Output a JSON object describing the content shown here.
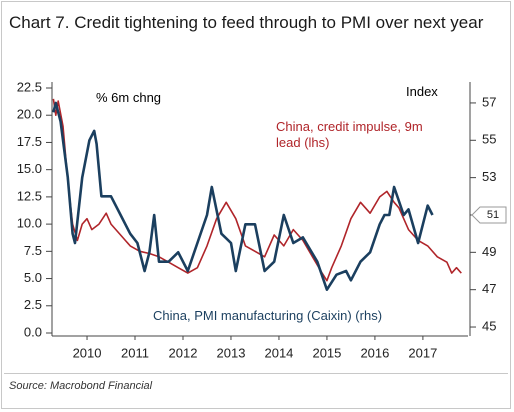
{
  "chart_data": {
    "type": "line",
    "title": "Chart 7. Credit tightening to feed through to PMI over next year",
    "ylabel": "% 6m chng",
    "y2label": "Index",
    "source": "Source: Macrobond Financial",
    "xlim": [
      2009.77,
      2018.44
    ],
    "xticks": [
      {
        "value": 2010.5,
        "label": "2010"
      },
      {
        "value": 2011.5,
        "label": "2011"
      },
      {
        "value": 2012.5,
        "label": "2012"
      },
      {
        "value": 2013.5,
        "label": "2013"
      },
      {
        "value": 2014.5,
        "label": "2014"
      },
      {
        "value": 2015.5,
        "label": "2015"
      },
      {
        "value": 2016.5,
        "label": "2016"
      },
      {
        "value": 2017.5,
        "label": "2017"
      }
    ],
    "ylim": [
      0,
      22.5
    ],
    "yticks": [
      {
        "value": 0,
        "label": "0.0"
      },
      2.5,
      {
        "value": 5,
        "label": "5.0"
      },
      7.5,
      {
        "value": 10,
        "label": "10.0"
      },
      12.5,
      {
        "value": 15,
        "label": "15.0"
      },
      17.5,
      {
        "value": 20,
        "label": "20.0"
      },
      22.5
    ],
    "y2lim": [
      44.68,
      57.8
    ],
    "y2ticks": [
      45,
      47,
      49,
      51,
      53,
      55,
      57
    ],
    "series": [
      {
        "name": "China, credit impulse, 9m lead (lhs)",
        "color": "#b0252a",
        "axis": "y",
        "x": [
          2009.8,
          2009.85,
          2009.9,
          2010.0,
          2010.1,
          2010.2,
          2010.3,
          2010.4,
          2010.5,
          2010.6,
          2010.75,
          2010.9,
          2011.0,
          2011.2,
          2011.4,
          2011.6,
          2011.8,
          2012.0,
          2012.2,
          2012.4,
          2012.6,
          2012.8,
          2013.0,
          2013.2,
          2013.4,
          2013.6,
          2013.8,
          2014.0,
          2014.2,
          2014.4,
          2014.6,
          2014.8,
          2015.0,
          2015.2,
          2015.4,
          2015.5,
          2015.6,
          2015.8,
          2016.0,
          2016.2,
          2016.4,
          2016.6,
          2016.75,
          2016.9,
          2017.0,
          2017.2,
          2017.4,
          2017.6,
          2017.8,
          2018.0,
          2018.1,
          2018.2,
          2018.3
        ],
        "values": [
          21.5,
          20,
          21.3,
          19,
          14,
          10,
          8.5,
          10,
          10.5,
          9.5,
          10,
          11,
          10,
          9,
          8,
          7.5,
          7.3,
          7,
          6.5,
          6,
          5.5,
          6,
          8,
          10.5,
          12,
          10.5,
          8,
          7.5,
          7,
          9,
          8,
          9.5,
          8.5,
          7,
          5.5,
          4.8,
          6,
          8,
          10.5,
          12,
          11,
          12.5,
          13,
          12,
          11.5,
          9.5,
          8.5,
          8,
          7,
          6.5,
          5.5,
          6,
          5.5
        ]
      },
      {
        "name": "China, PMI manufacturing (Caixin) (rhs)",
        "color": "#1b3f5f",
        "axis": "y2",
        "x": [
          2009.8,
          2009.85,
          2009.95,
          2010.1,
          2010.2,
          2010.25,
          2010.4,
          2010.55,
          2010.65,
          2010.7,
          2010.8,
          2011.0,
          2011.2,
          2011.4,
          2011.55,
          2011.7,
          2011.8,
          2011.9,
          2012.0,
          2012.2,
          2012.4,
          2012.6,
          2012.8,
          2013.0,
          2013.1,
          2013.3,
          2013.5,
          2013.6,
          2013.8,
          2014.0,
          2014.2,
          2014.4,
          2014.6,
          2014.8,
          2015.0,
          2015.3,
          2015.5,
          2015.7,
          2015.9,
          2016.0,
          2016.2,
          2016.4,
          2016.6,
          2016.7,
          2016.8,
          2016.9,
          2017.1,
          2017.2,
          2017.4,
          2017.5,
          2017.6,
          2017.7
        ],
        "values": [
          56.5,
          57,
          56,
          53,
          50,
          49.5,
          53,
          55,
          55.5,
          54.8,
          52,
          52,
          51,
          50,
          49.5,
          48,
          49,
          51,
          48.5,
          48.5,
          49,
          48,
          49.5,
          51,
          52.5,
          50,
          49.5,
          48,
          50.5,
          50.5,
          48,
          48.5,
          51,
          49.5,
          49.8,
          48.5,
          47,
          47.8,
          48,
          47.5,
          48.5,
          49,
          50.5,
          51,
          51,
          52.5,
          51,
          51.3,
          49.5,
          50.5,
          51.5,
          51
        ],
        "value_labels": [
          null,
          null,
          null,
          null,
          null,
          null,
          null,
          null,
          null,
          null,
          null,
          null,
          null,
          null,
          null,
          null,
          null,
          null,
          null,
          null,
          null,
          null,
          null,
          null,
          null,
          null,
          null,
          null,
          null,
          null,
          null,
          null,
          null,
          null,
          null,
          null,
          null,
          null,
          null,
          null,
          null,
          null,
          null,
          null,
          null,
          null,
          null,
          null,
          null,
          null,
          null,
          "51"
        ]
      }
    ]
  }
}
